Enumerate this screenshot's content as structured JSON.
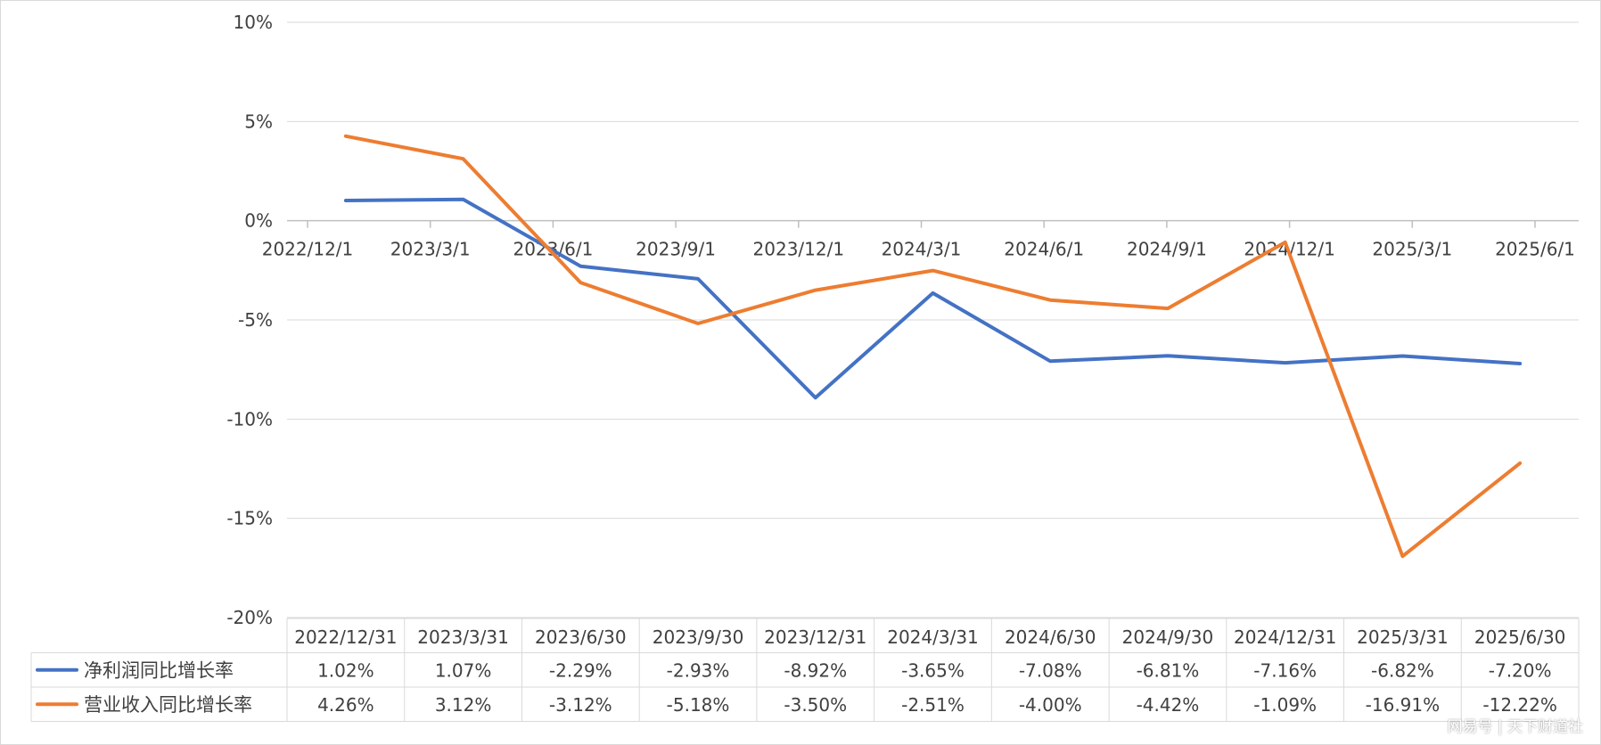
{
  "chart_data": {
    "type": "line",
    "title": "",
    "y_ticks": [
      "10%",
      "5%",
      "0%",
      "-5%",
      "-10%",
      "-15%",
      "-20%"
    ],
    "ylim": [
      -20,
      10
    ],
    "y_unit": "%",
    "x_axis_labels": [
      "2022/12/1",
      "2023/3/1",
      "2023/6/1",
      "2023/9/1",
      "2023/12/1",
      "2024/3/1",
      "2024/6/1",
      "2024/9/1",
      "2024/12/1",
      "2025/3/1",
      "2025/6/1"
    ],
    "categories": [
      "2022/12/31",
      "2023/3/31",
      "2023/6/30",
      "2023/9/30",
      "2023/12/31",
      "2024/3/31",
      "2024/6/30",
      "2024/9/30",
      "2024/12/31",
      "2025/3/31",
      "2025/6/30"
    ],
    "series": [
      {
        "name": "净利润同比增长率",
        "color": "#4472C4",
        "values": [
          1.02,
          1.07,
          -2.29,
          -2.93,
          -8.92,
          -3.65,
          -7.08,
          -6.81,
          -7.16,
          -6.82,
          -7.2
        ],
        "labels": [
          "1.02%",
          "1.07%",
          "-2.29%",
          "-2.93%",
          "-8.92%",
          "-3.65%",
          "-7.08%",
          "-6.81%",
          "-7.16%",
          "-6.82%",
          "-7.20%"
        ]
      },
      {
        "name": "营业收入同比增长率",
        "color": "#ED7D31",
        "values": [
          4.26,
          3.12,
          -3.12,
          -5.18,
          -3.5,
          -2.51,
          -4.0,
          -4.42,
          -1.09,
          -16.91,
          -12.22
        ],
        "labels": [
          "4.26%",
          "3.12%",
          "-3.12%",
          "-5.18%",
          "-3.50%",
          "-2.51%",
          "-4.00%",
          "-4.42%",
          "-1.09%",
          "-16.91%",
          "-12.22%"
        ]
      }
    ],
    "grid": true,
    "data_table": true
  },
  "watermark": "网易号 | 天下财道社"
}
